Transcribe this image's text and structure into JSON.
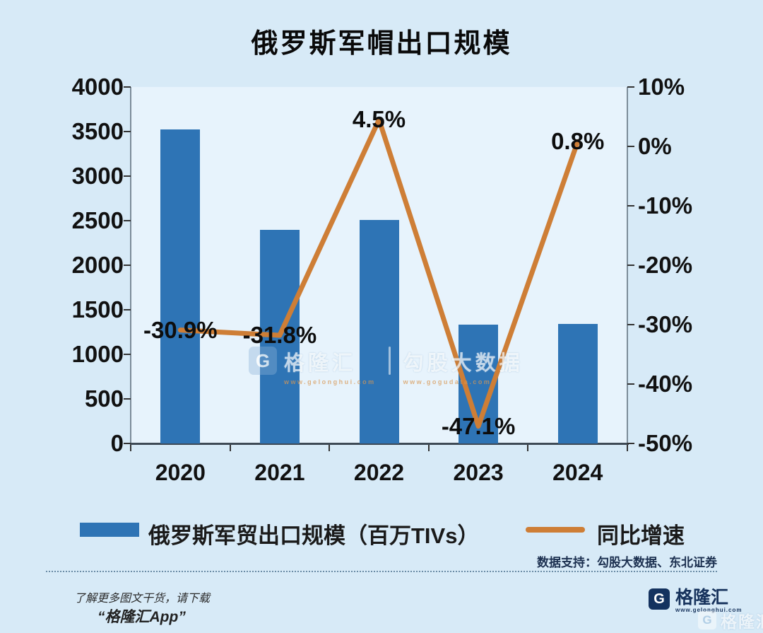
{
  "title": "俄罗斯军帽出口规模",
  "chart_data": {
    "type": "bar",
    "title": "俄罗斯军帽出口规模",
    "categories": [
      "2020",
      "2021",
      "2022",
      "2023",
      "2024"
    ],
    "series": [
      {
        "name": "俄罗斯军贸出口规模（百万TIVs）",
        "type": "bar",
        "axis": "left",
        "color": "#2E74B5",
        "values": [
          3520,
          2400,
          2510,
          1330,
          1340
        ]
      },
      {
        "name": "同比增速",
        "type": "line",
        "axis": "right",
        "color": "#CE7E36",
        "values": [
          -30.9,
          -31.8,
          4.5,
          -47.1,
          0.8
        ],
        "labels": [
          "-30.9%",
          "-31.8%",
          "4.5%",
          "-47.1%",
          "0.8%"
        ]
      }
    ],
    "left_axis": {
      "min": 0,
      "max": 4000,
      "ticks": [
        "4000",
        "3500",
        "3000",
        "2500",
        "2000",
        "1500",
        "1000",
        "500",
        "0"
      ]
    },
    "right_axis": {
      "min": -50,
      "max": 10,
      "ticks": [
        "10%",
        "0%",
        "-10%",
        "-20%",
        "-30%",
        "-40%",
        "-50%"
      ]
    },
    "grid": false,
    "legend_position": "bottom"
  },
  "legend": {
    "bar_label": "俄罗斯军贸出口规模（百万TIVs）",
    "line_label": "同比增速"
  },
  "watermark": {
    "icon": "G",
    "brand": "格隆汇",
    "brand_url": "www.gelonghui.com",
    "partner": "勾股大数据",
    "partner_url": "www.gogudata.com"
  },
  "footer": {
    "support": "数据支持：勾股大数据、东北证券",
    "promo_line1": "了解更多图文干货，请下载",
    "promo_line2": "“格隆汇App”",
    "brand": "格隆汇",
    "brand_url": "www.gelonghui.com",
    "brand_icon": "G",
    "ghost_brand": "格隆汇"
  },
  "colors": {
    "background": "#D7EAF7",
    "plot_background": "#E7F3FC",
    "bar": "#2E74B5",
    "line": "#CE7E36",
    "axis": "#7C8C99",
    "brand_navy": "#16325C"
  }
}
